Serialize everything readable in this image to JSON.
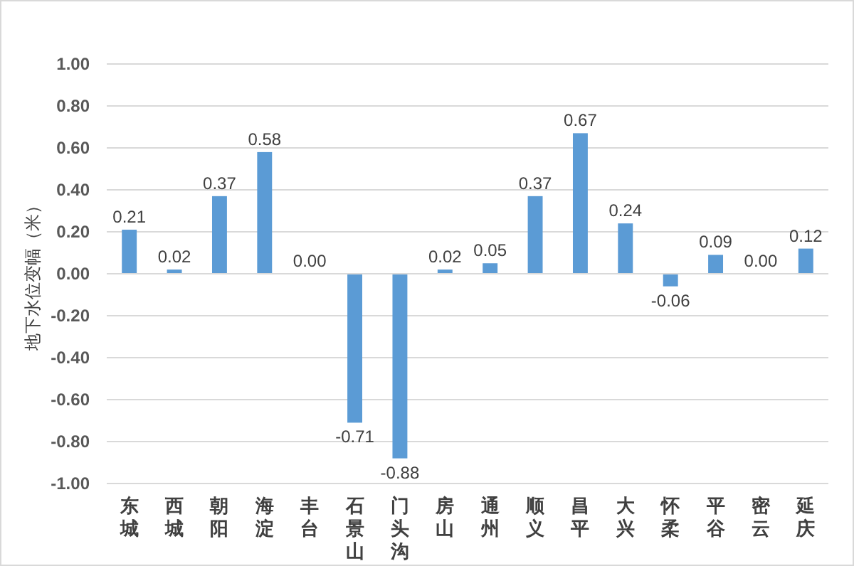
{
  "chart_data": {
    "type": "bar",
    "ylabel": "地下水位变幅（米）",
    "categories": [
      "东城",
      "西城",
      "朝阳",
      "海淀",
      "丰台",
      "石景山",
      "门头沟",
      "房山",
      "通州",
      "顺义",
      "昌平",
      "大兴",
      "怀柔",
      "平谷",
      "密云",
      "延庆"
    ],
    "values": [
      0.21,
      0.02,
      0.37,
      0.58,
      0.0,
      -0.71,
      -0.88,
      0.02,
      0.05,
      0.37,
      0.67,
      0.24,
      -0.06,
      0.09,
      0.0,
      0.12
    ],
    "value_labels": [
      "0.21",
      "0.02",
      "0.37",
      "0.58",
      "0.00",
      "-0.71",
      "-0.88",
      "0.02",
      "0.05",
      "0.37",
      "0.67",
      "0.24",
      "-0.06",
      "0.09",
      "0.00",
      "0.12"
    ],
    "color": "#5b9bd5",
    "ylim": [
      -1,
      1
    ],
    "yticks": [
      {
        "value": -1,
        "label": "-1.00"
      },
      {
        "value": -0.8,
        "label": "-0.80"
      },
      {
        "value": -0.6,
        "label": "-0.60"
      },
      {
        "value": -0.4,
        "label": "-0.40"
      },
      {
        "value": -0.2,
        "label": "-0.20"
      },
      {
        "value": 0,
        "label": "0.00"
      },
      {
        "value": 0.2,
        "label": "0.20"
      },
      {
        "value": 0.4,
        "label": "0.40"
      },
      {
        "value": 0.6,
        "label": "0.60"
      },
      {
        "value": 0.8,
        "label": "0.80"
      },
      {
        "value": 1,
        "label": "1.00"
      }
    ],
    "grid": "y"
  }
}
